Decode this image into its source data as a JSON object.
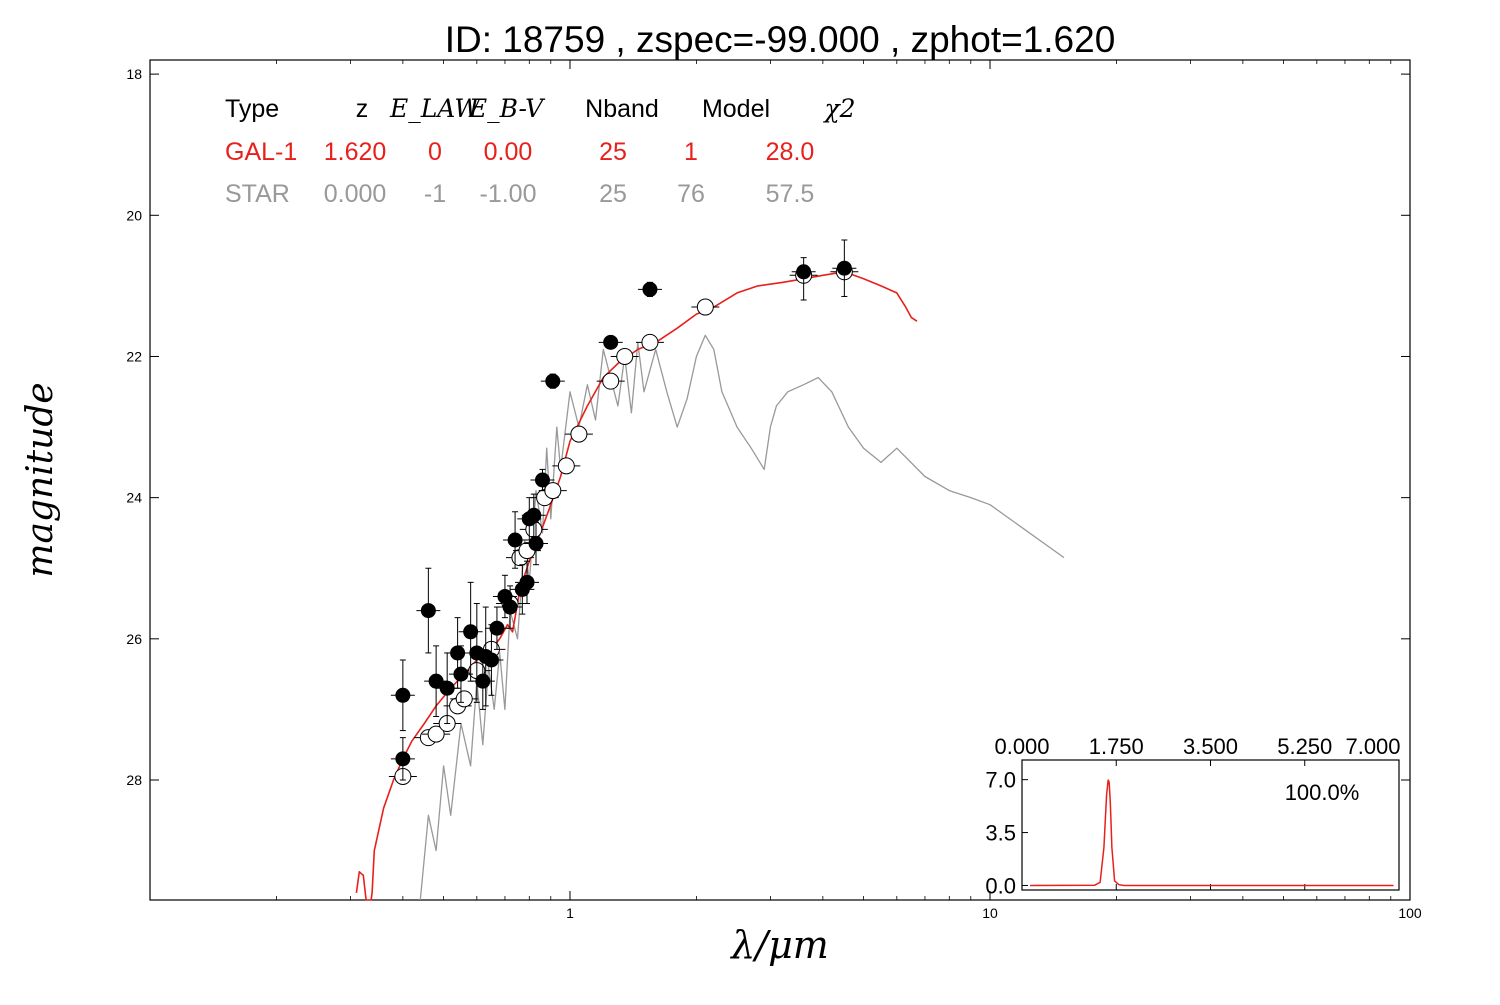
{
  "chart_data": [
    {
      "type": "line",
      "title": "ID:  18759 , zspec=-99.000 , zphot=1.620",
      "xlabel": "λ/μm",
      "ylabel": "magnitude",
      "x_scale": "log",
      "xlim": [
        0.1,
        100
      ],
      "ylim": [
        29.7,
        17.8
      ],
      "y_inverted": true,
      "grid": false,
      "xticks": [
        {
          "value": 1,
          "label": "1"
        },
        {
          "value": 10,
          "label": "10"
        },
        {
          "value": 100,
          "label": "100"
        }
      ],
      "yticks": [
        {
          "value": 18,
          "label": "18"
        },
        {
          "value": 20,
          "label": "20"
        },
        {
          "value": 22,
          "label": "22"
        },
        {
          "value": 24,
          "label": "24"
        },
        {
          "value": 26,
          "label": "26"
        },
        {
          "value": 28,
          "label": "28"
        }
      ],
      "info_table": {
        "headers": [
          "Type",
          "z",
          "E_LAW",
          "E_B-V",
          "Nband",
          "Model",
          "χ2"
        ],
        "rows": [
          {
            "color": "#e8201c",
            "cells": [
              "GAL-1",
              "1.620",
              "0",
              "0.00",
              "25",
              "1",
              "28.0"
            ]
          },
          {
            "color": "#999999",
            "cells": [
              "STAR",
              "0.000",
              "-1",
              "-1.00",
              "25",
              "76",
              "57.5"
            ]
          }
        ]
      },
      "colors": {
        "galaxy": "#e8201c",
        "star": "#999999",
        "observed": "#000000",
        "model_points": "#ffffff"
      },
      "series": [
        {
          "name": "GAL-1",
          "style": "line",
          "x": [
            0.31,
            0.315,
            0.322,
            0.327,
            0.33,
            0.333,
            0.336,
            0.338,
            0.342,
            0.36,
            0.38,
            0.4,
            0.42,
            0.45,
            0.48,
            0.52,
            0.56,
            0.6,
            0.64,
            0.68,
            0.71,
            0.73,
            0.76,
            0.8,
            0.85,
            0.9,
            0.95,
            1.0,
            1.1,
            1.2,
            1.3,
            1.45,
            1.6,
            1.8,
            2.0,
            2.2,
            2.5,
            2.8,
            3.2,
            3.6,
            4.0,
            4.5,
            5.0,
            5.5,
            6.0,
            6.3,
            6.5,
            6.7
          ],
          "y": [
            29.6,
            29.3,
            29.35,
            29.7,
            29.7,
            29.7,
            29.7,
            29.6,
            29.0,
            28.4,
            28.0,
            27.7,
            27.45,
            27.2,
            26.95,
            26.7,
            26.5,
            26.3,
            26.2,
            26.0,
            25.8,
            25.9,
            25.3,
            24.9,
            24.5,
            24.1,
            23.7,
            23.2,
            22.7,
            22.3,
            22.1,
            21.9,
            21.8,
            21.6,
            21.4,
            21.3,
            21.1,
            21.0,
            20.95,
            20.9,
            20.85,
            20.8,
            20.9,
            21.0,
            21.1,
            21.3,
            21.45,
            21.5
          ]
        },
        {
          "name": "STAR",
          "style": "line",
          "x": [
            0.44,
            0.46,
            0.48,
            0.5,
            0.52,
            0.55,
            0.58,
            0.6,
            0.62,
            0.64,
            0.66,
            0.68,
            0.7,
            0.72,
            0.75,
            0.78,
            0.8,
            0.83,
            0.86,
            0.88,
            0.9,
            0.93,
            0.95,
            1.0,
            1.05,
            1.1,
            1.15,
            1.2,
            1.3,
            1.35,
            1.4,
            1.45,
            1.5,
            1.6,
            1.7,
            1.8,
            1.9,
            2.0,
            2.1,
            2.2,
            2.3,
            2.5,
            2.7,
            2.9,
            3.0,
            3.1,
            3.3,
            3.6,
            3.9,
            4.2,
            4.6,
            5.0,
            5.5,
            6.0,
            7.0,
            8.0,
            9.0,
            10.0,
            15.0
          ],
          "y": [
            29.7,
            28.5,
            29.0,
            27.8,
            28.5,
            27.2,
            27.8,
            26.6,
            27.5,
            26.4,
            27.0,
            26.2,
            27.0,
            25.6,
            26.0,
            24.6,
            25.2,
            23.9,
            24.5,
            23.3,
            24.3,
            23.0,
            23.6,
            22.5,
            23.0,
            22.4,
            22.9,
            21.9,
            22.7,
            22.0,
            22.8,
            21.8,
            22.5,
            21.9,
            22.5,
            23.0,
            22.6,
            22.0,
            21.7,
            21.9,
            22.5,
            23.0,
            23.3,
            23.6,
            23.0,
            22.7,
            22.5,
            22.4,
            22.3,
            22.5,
            23.0,
            23.3,
            23.5,
            23.3,
            23.7,
            23.9,
            24.0,
            24.1,
            24.85
          ]
        },
        {
          "name": "observed",
          "style": "filled-points",
          "x": [
            0.4,
            0.4,
            0.46,
            0.48,
            0.51,
            0.54,
            0.55,
            0.58,
            0.6,
            0.62,
            0.63,
            0.65,
            0.67,
            0.7,
            0.72,
            0.74,
            0.77,
            0.79,
            0.8,
            0.82,
            0.83,
            0.86,
            0.91,
            1.25,
            1.55,
            3.6,
            4.5
          ],
          "y": [
            26.8,
            27.7,
            25.6,
            26.6,
            26.7,
            26.2,
            26.5,
            25.9,
            26.2,
            26.6,
            26.25,
            26.3,
            25.85,
            25.4,
            25.55,
            24.6,
            25.3,
            25.2,
            24.3,
            24.25,
            24.65,
            23.75,
            22.35,
            21.8,
            21.05,
            20.8,
            20.75
          ],
          "yerr_low": [
            0.5,
            0.3,
            0.6,
            0.5,
            0.5,
            0.5,
            0.4,
            0.7,
            0.7,
            0.4,
            0.7,
            0.5,
            0.3,
            0.3,
            0.3,
            0.4,
            0.35,
            0.3,
            0.3,
            0.3,
            0.3,
            0.15,
            0.1,
            0.05,
            0.1,
            0.2,
            0.4
          ],
          "yerr_high": [
            0.5,
            0.3,
            0.6,
            0.5,
            0.5,
            0.5,
            0.4,
            0.7,
            0.7,
            0.4,
            0.7,
            0.5,
            0.3,
            0.3,
            0.3,
            0.4,
            0.35,
            0.3,
            0.3,
            0.3,
            0.3,
            0.15,
            0.1,
            0.05,
            0.1,
            0.4,
            0.4
          ]
        },
        {
          "name": "model-points",
          "style": "open-points",
          "x": [
            0.4,
            0.46,
            0.48,
            0.51,
            0.54,
            0.56,
            0.6,
            0.65,
            0.72,
            0.76,
            0.79,
            0.82,
            0.87,
            0.91,
            0.98,
            1.05,
            1.25,
            1.35,
            1.55,
            2.1,
            3.6,
            4.5
          ],
          "y": [
            27.95,
            27.4,
            27.35,
            27.2,
            26.95,
            26.85,
            26.45,
            26.15,
            25.5,
            24.85,
            24.75,
            24.45,
            24.0,
            23.9,
            23.55,
            23.1,
            22.35,
            22.0,
            21.8,
            21.3,
            20.85,
            20.8
          ]
        }
      ]
    },
    {
      "type": "line",
      "title": "",
      "xlabel": "",
      "ylabel": "",
      "xlim": [
        0.0,
        7.0
      ],
      "ylim": [
        -0.3,
        8.3
      ],
      "xticks": [
        {
          "value": 0.0,
          "label": "0.000"
        },
        {
          "value": 1.75,
          "label": "1.750"
        },
        {
          "value": 3.5,
          "label": "3.500"
        },
        {
          "value": 5.25,
          "label": "5.250"
        },
        {
          "value": 7.0,
          "label": "7.000"
        }
      ],
      "yticks": [
        {
          "value": 0.0,
          "label": "0.0"
        },
        {
          "value": 3.5,
          "label": "3.5"
        },
        {
          "value": 7.0,
          "label": "7.0"
        }
      ],
      "annotation": "100.0%",
      "series": [
        {
          "name": "PDZ",
          "x": [
            0.15,
            1.35,
            1.45,
            1.52,
            1.57,
            1.6,
            1.62,
            1.64,
            1.67,
            1.72,
            1.8,
            1.9,
            6.9
          ],
          "y": [
            0.0,
            0.02,
            0.2,
            2.5,
            6.0,
            7.0,
            6.8,
            5.5,
            2.5,
            0.3,
            0.05,
            0.0,
            0.0
          ]
        }
      ]
    }
  ]
}
